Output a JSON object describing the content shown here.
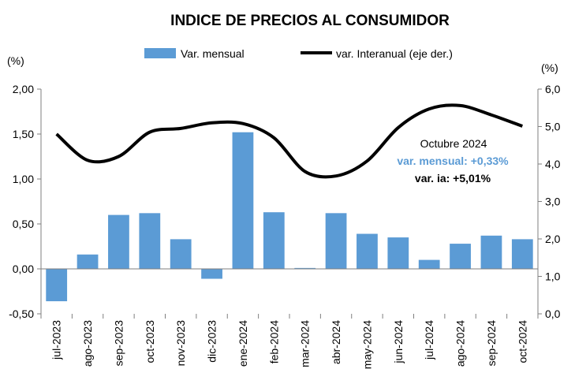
{
  "chart_data": {
    "type": "bar",
    "title": "INDICE DE PRECIOS AL CONSUMIDOR",
    "y_left_unit": "(%)",
    "y_right_unit": "(%)",
    "categories": [
      "jul-2023",
      "ago-2023",
      "sep-2023",
      "oct-2023",
      "nov-2023",
      "dic-2023",
      "ene-2024",
      "feb-2024",
      "mar-2024",
      "abr-2024",
      "may-2024",
      "jun-2024",
      "jul-2024",
      "ago-2024",
      "sep-2024",
      "oct-2024"
    ],
    "series": [
      {
        "name": "Var. mensual",
        "type": "bar",
        "axis": "left",
        "color": "#5b9bd5",
        "values": [
          -0.36,
          0.16,
          0.6,
          0.62,
          0.33,
          -0.11,
          1.52,
          0.63,
          0.01,
          0.62,
          0.39,
          0.35,
          0.1,
          0.28,
          0.37,
          0.33
        ]
      },
      {
        "name": "var. Interanual (eje der.)",
        "type": "line",
        "axis": "right",
        "color": "#000000",
        "values": [
          4.8,
          4.1,
          4.2,
          4.85,
          4.95,
          5.1,
          5.08,
          4.7,
          3.8,
          3.68,
          4.08,
          4.97,
          5.47,
          5.56,
          5.31,
          5.01
        ]
      }
    ],
    "y_left": {
      "min": -0.5,
      "max": 2.0,
      "step": 0.5,
      "tick_labels": [
        "-0,50",
        "0,00",
        "0,50",
        "1,00",
        "1,50",
        "2,00"
      ]
    },
    "y_right": {
      "min": 0.0,
      "max": 6.0,
      "step": 1.0,
      "tick_labels": [
        "0,0",
        "1,0",
        "2,0",
        "3,0",
        "4,0",
        "5,0",
        "6,0"
      ]
    },
    "legend_position": "top",
    "grid": false,
    "annotation": {
      "line1": "Octubre 2024",
      "line2": "var. mensual: +0,33%",
      "line3": "var. ia: +5,01%",
      "line2_color": "#5b9bd5",
      "line3_color": "#000000"
    }
  }
}
